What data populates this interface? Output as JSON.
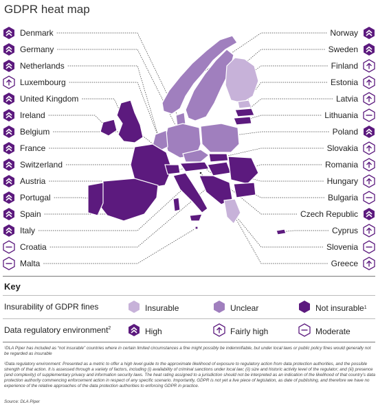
{
  "title": "GDPR heat map",
  "colors": {
    "insurable": "#c7b2d9",
    "unclear": "#a07fbe",
    "not_insurable": "#5c1a7e",
    "icon": "#5c1a7e",
    "outline": "#ffffff"
  },
  "left_countries": [
    {
      "name": "Denmark",
      "env": "high"
    },
    {
      "name": "Germany",
      "env": "high"
    },
    {
      "name": "Netherlands",
      "env": "high"
    },
    {
      "name": "Luxembourg",
      "env": "fairly_high"
    },
    {
      "name": "United Kingdom",
      "env": "high"
    },
    {
      "name": "Ireland",
      "env": "high"
    },
    {
      "name": "Belgium",
      "env": "high"
    },
    {
      "name": "France",
      "env": "high"
    },
    {
      "name": "Switzerland",
      "env": "high"
    },
    {
      "name": "Austria",
      "env": "high"
    },
    {
      "name": "Portugal",
      "env": "high"
    },
    {
      "name": "Spain",
      "env": "high"
    },
    {
      "name": "Italy",
      "env": "high"
    },
    {
      "name": "Croatia",
      "env": "moderate"
    },
    {
      "name": "Malta",
      "env": "moderate"
    }
  ],
  "right_countries": [
    {
      "name": "Norway",
      "env": "high"
    },
    {
      "name": "Sweden",
      "env": "high"
    },
    {
      "name": "Finland",
      "env": "fairly_high"
    },
    {
      "name": "Estonia",
      "env": "fairly_high"
    },
    {
      "name": "Latvia",
      "env": "fairly_high"
    },
    {
      "name": "Lithuania",
      "env": "moderate"
    },
    {
      "name": "Poland",
      "env": "high"
    },
    {
      "name": "Slovakia",
      "env": "fairly_high"
    },
    {
      "name": "Romania",
      "env": "fairly_high"
    },
    {
      "name": "Hungary",
      "env": "fairly_high"
    },
    {
      "name": "Bulgaria",
      "env": "moderate"
    },
    {
      "name": "Czech Republic",
      "env": "high"
    },
    {
      "name": "Cyprus",
      "env": "fairly_high"
    },
    {
      "name": "Slovenia",
      "env": "moderate"
    },
    {
      "name": "Greece",
      "env": "fairly_high"
    }
  ],
  "key": {
    "title": "Key",
    "insurability_label": "Insurability of GDPR fines",
    "insurability_sup": "",
    "insurable": "Insurable",
    "unclear": "Unclear",
    "not_insurable": "Not insurable",
    "not_insurable_sup": "1",
    "environment_label": "Data regulatory environment",
    "environment_sup": "2",
    "high": "High",
    "fairly_high": "Fairly high",
    "moderate": "Moderate"
  },
  "footnotes": {
    "note1": "¹DLA Piper has included as “not insurable” countries where in certain limited circumstances a fine might possibly be indemnifiable, but under local laws or public policy fines would generally not be regarded as insurable",
    "note2": "²Data regulatory environment: Presented as a metric to offer a high level guide to the approximate likelihood of exposure to regulatory action from data protection authorities, and the possible strength of that action. It is assessed through a variety of factors, including (i) availability of criminal sanctions under local law; (ii) size and historic activity level of the regulator; and (iii) presence (and complexity) of supplementary privacy and information security laws. The heat rating assigned to a jurisdiction should not be interpreted as an indication of the likelihood of that country’s data protection authority commencing enforcement action in respect of any specific scenario. Importantly, GDPR is not yet a live piece of legislation, as date of publishing, and therefore we have no experience of the relative approaches of the data protection authorities to enforcing GDPR in practice.",
    "source": "Source: DLA Piper"
  }
}
